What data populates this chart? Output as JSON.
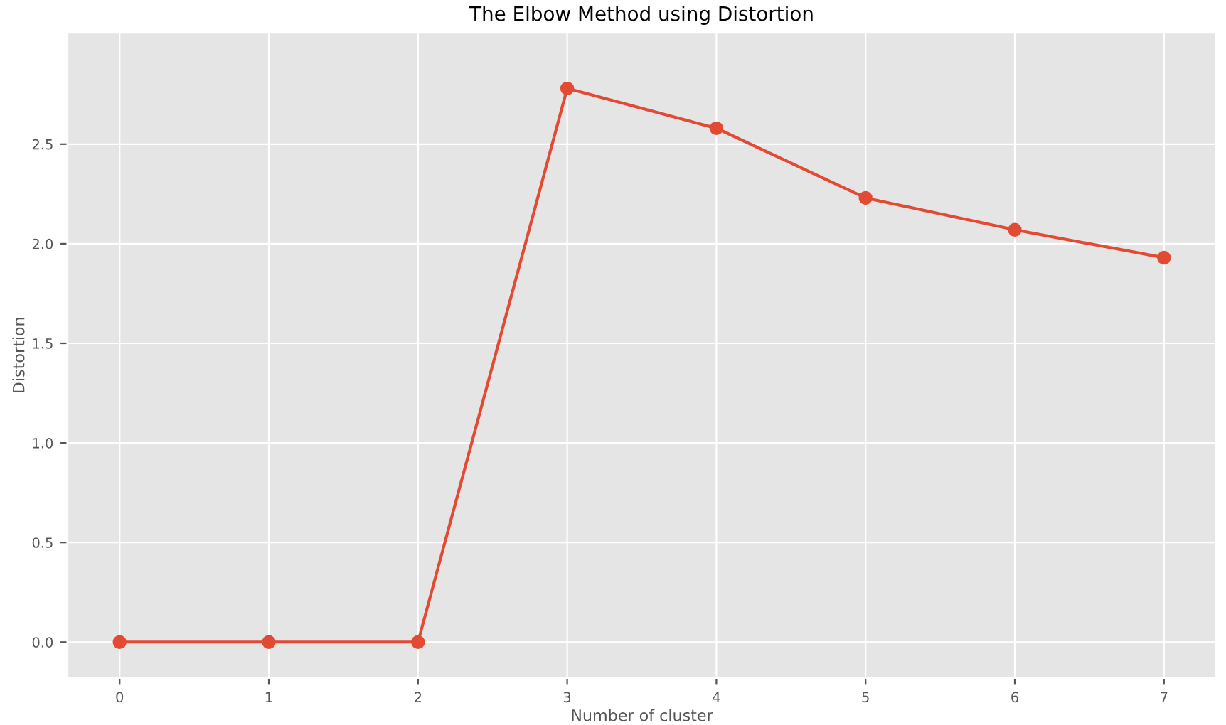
{
  "chart_data": {
    "type": "line",
    "title": "The Elbow Method using Distortion",
    "xlabel": "Number of cluster",
    "ylabel": "Distortion",
    "x": [
      0,
      1,
      2,
      3,
      4,
      5,
      6,
      7
    ],
    "series": [
      {
        "color": "#e24a33",
        "values": [
          0.0,
          0.0,
          0.0,
          2.78,
          2.58,
          2.23,
          2.07,
          1.93
        ]
      }
    ],
    "xlim": [
      -0.35,
      7.35
    ],
    "ylim": [
      -0.18,
      3.06
    ],
    "xticks": [
      0,
      1,
      2,
      3,
      4,
      5,
      6,
      7
    ],
    "yticks": [
      {
        "value": 0,
        "label": "0.0"
      },
      {
        "value": 0.5,
        "label": "0.5"
      },
      {
        "value": 1,
        "label": "1.0"
      },
      {
        "value": 1.5,
        "label": "1.5"
      },
      {
        "value": 2,
        "label": "2.0"
      },
      {
        "value": 2.5,
        "label": "2.5"
      }
    ],
    "grid": true,
    "marker": "circle",
    "line_style": "solid"
  }
}
